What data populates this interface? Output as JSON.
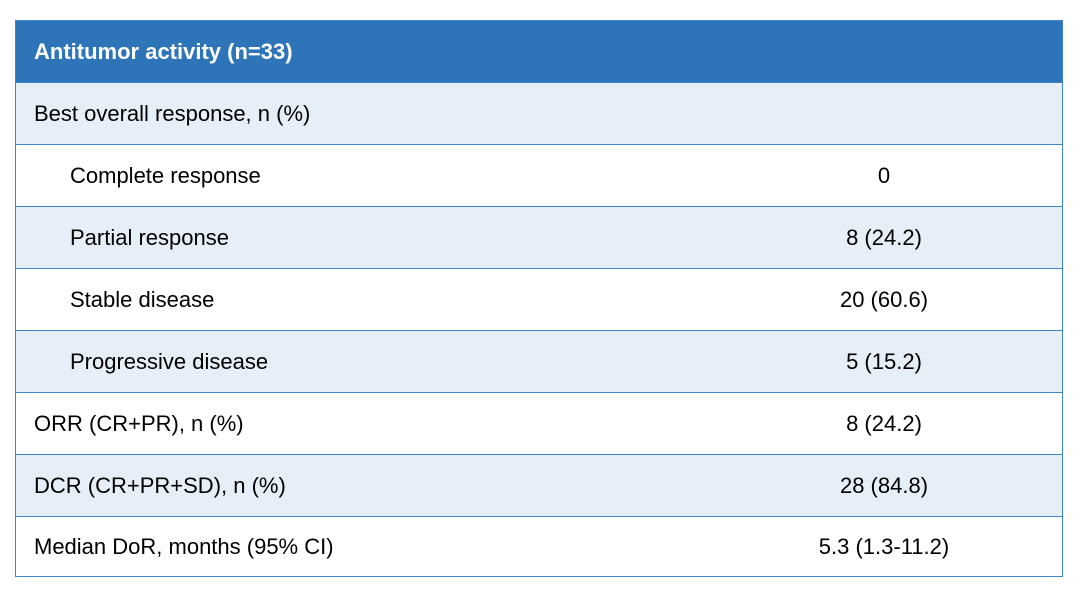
{
  "table": {
    "header": "Antitumor activity (n=33)",
    "rows": [
      {
        "label": "Best overall response, n (%)",
        "value": ""
      },
      {
        "label": "Complete response",
        "value": "0"
      },
      {
        "label": "Partial response",
        "value": "8 (24.2)"
      },
      {
        "label": "Stable disease",
        "value": "20 (60.6)"
      },
      {
        "label": "Progressive disease",
        "value": "5 (15.2)"
      },
      {
        "label": "ORR (CR+PR), n (%)",
        "value": "8 (24.2)"
      },
      {
        "label": "DCR (CR+PR+SD), n (%)",
        "value": "28 (84.8)"
      },
      {
        "label": "Median DoR, months (95% CI)",
        "value": "5.3 (1.3-11.2)"
      }
    ]
  },
  "colors": {
    "header_bg": "#2e74b8",
    "border": "#3a86c8",
    "row_shaded": "#e6eef7",
    "row_plain": "#ffffff"
  }
}
